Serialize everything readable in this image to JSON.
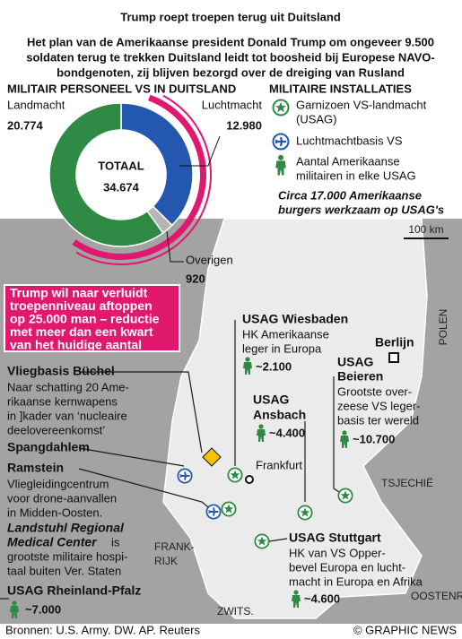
{
  "title": "Trump roept troepen terug uit Duitsland",
  "subtitle": [
    "Het plan van de Amerikaanse president Donald Trump om ongeveer 9.500",
    "soldaten terug te trekken Duitsland leidt tot boosheid bij Europese NAVO-",
    "bondgenoten, zij blijven bezorgd over de dreiging van Rusland"
  ],
  "chart_data": {
    "type": "donut",
    "title": "MILITAIR PERSONEEL VS IN DUITSLAND",
    "categories": [
      "Landmacht",
      "Luchtmacht",
      "Overigen"
    ],
    "values": [
      20774,
      12980,
      920
    ],
    "value_labels": [
      "20.774",
      "12.980",
      "920"
    ],
    "colors": [
      "#2e8a45",
      "#2357b0",
      "#b5b5b5"
    ],
    "center_label": "TOTAAL",
    "total": {
      "value": 34674,
      "label": "34.674"
    }
  },
  "legend": {
    "title": "MILITAIRE INSTALLATIES",
    "garrison": [
      "Garnizoen VS-landmacht",
      "(USAG)"
    ],
    "airbase": "Luchtmachtbasis VS",
    "troops": [
      "Aantal Amerikaanse",
      "militairen in elke USAG"
    ],
    "note": [
      "Circa 17.000 Amerikaanse",
      "burgers werkzaam op USAG's"
    ]
  },
  "callout": [
    "Trump wil naar verluidt",
    "troepenniveau aftoppen",
    "op 25.000 man – reductie",
    "met meer dan een kwart",
    "van het huidige aantal"
  ],
  "map": {
    "scale": "100 km",
    "countries": {
      "poland": "POLEN",
      "czechia": "TSJECHIË",
      "austria": "OOSTENR.",
      "switzerland": "ZWITS.",
      "france": [
        "FRANK-",
        "RIJK"
      ]
    },
    "cities": {
      "berlin": "Berlijn",
      "frankfurt": "Frankfurt"
    }
  },
  "bases": {
    "buchel": {
      "name": "Vliegbasis Büchel",
      "desc": [
        "Naar schatting 20 Ame-",
        "rikaanse kernwapens",
        "in ]kader van ‘nucleaire",
        "deelovereenkomst’"
      ]
    },
    "spangdahlem": {
      "name": "Spangdahlem"
    },
    "ramstein": {
      "name": "Ramstein",
      "desc": [
        "Vliegleidingcentrum",
        "voor drone-aanvallen",
        "in Midden-Oosten."
      ]
    },
    "landstuhl": {
      "name": [
        "Landstuhl Regional",
        "Medical Center"
      ],
      "desc": [
        "is",
        "grootste militaire hospi-",
        "taal buiten Ver. Staten"
      ]
    },
    "rheinland": {
      "name": "USAG Rheinland-Pfalz",
      "count": "~7.000"
    },
    "wiesbaden": {
      "name": "USAG Wiesbaden",
      "desc": [
        "HK Amerikaanse",
        "leger in Europa"
      ],
      "count": "~2.100"
    },
    "ansbach": {
      "name": [
        "USAG",
        "Ansbach"
      ],
      "count": "~4.400"
    },
    "beieren": {
      "name": [
        "USAG",
        "Beieren"
      ],
      "desc": [
        "Grootste over-",
        "zeese VS leger-",
        "basis ter wereld"
      ],
      "count": "~10.700"
    },
    "stuttgart": {
      "name": "USAG Stuttgart",
      "desc": [
        "HK van VS Opper-",
        "bevel Europa en lucht-",
        "macht in Europa en Afrika"
      ],
      "count": "~4.600"
    }
  },
  "footer": {
    "source": "Bronnen: U.S. Army. DW. AP. Reuters",
    "credit": "© GRAPHIC NEWS"
  }
}
